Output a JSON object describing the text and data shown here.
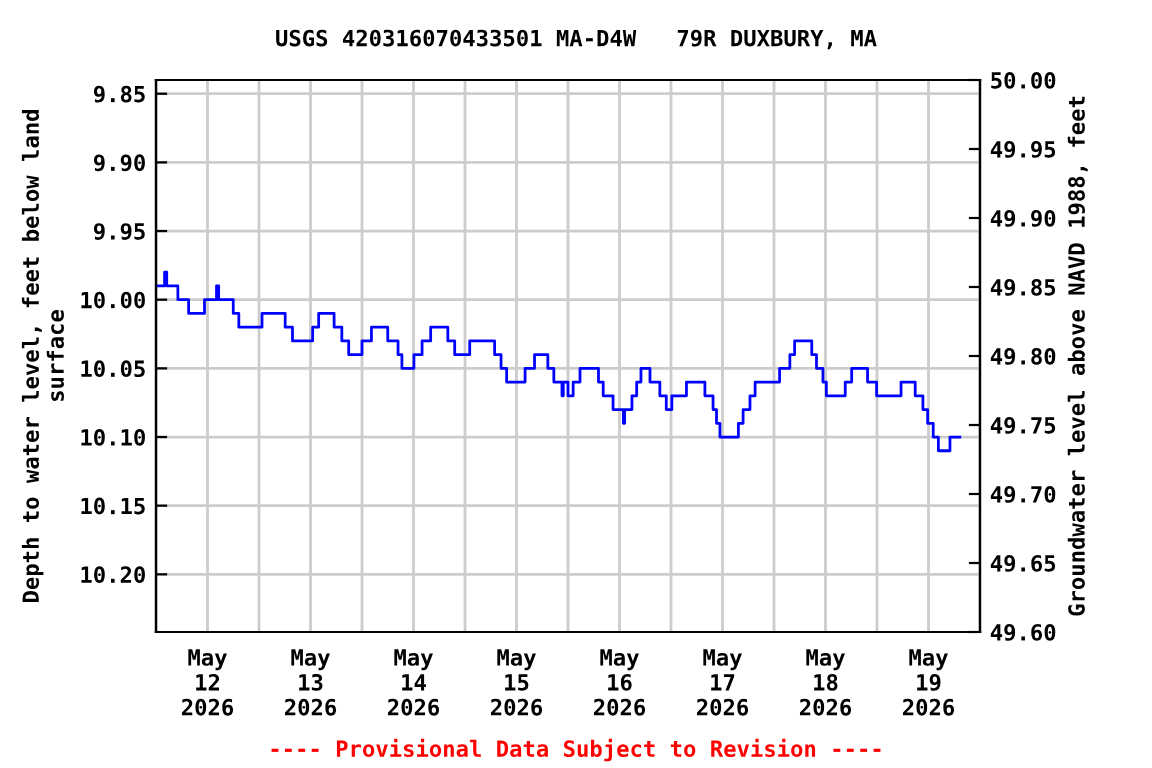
{
  "chart_data": {
    "type": "step",
    "title": "USGS 420316070433501 MA-D4W   79R DUXBURY, MA",
    "ylabel": "Depth to water level, feet below land\nsurface",
    "y2label": "Groundwater level above NAVD 1988, feet",
    "annotations": [
      "---- Provisional Data Subject to Revision ----"
    ],
    "series": [
      {
        "color": "#0000ff",
        "x": [
          "2026-05-12T00:10",
          "2026-05-12T02:00",
          "2026-05-12T02:30",
          "2026-05-12T05:06",
          "2026-05-12T07:36",
          "2026-05-12T11:18",
          "2026-05-12T14:06",
          "2026-05-12T14:36",
          "2026-05-12T18:00",
          "2026-05-12T19:18",
          "2026-05-13T00:42",
          "2026-05-13T06:06",
          "2026-05-13T07:48",
          "2026-05-13T12:30",
          "2026-05-13T13:54",
          "2026-05-13T17:30",
          "2026-05-13T19:18",
          "2026-05-13T20:54",
          "2026-05-14T00:00",
          "2026-05-14T02:12",
          "2026-05-14T06:00",
          "2026-05-14T08:24",
          "2026-05-14T09:18",
          "2026-05-14T12:06",
          "2026-05-14T14:00",
          "2026-05-14T16:00",
          "2026-05-14T20:00",
          "2026-05-14T21:36",
          "2026-05-15T01:06",
          "2026-05-15T06:54",
          "2026-05-15T08:24",
          "2026-05-15T09:42",
          "2026-05-15T14:00",
          "2026-05-15T16:12",
          "2026-05-15T19:18",
          "2026-05-15T20:42",
          "2026-05-15T22:36",
          "2026-05-15T22:54",
          "2026-05-16T00:00",
          "2026-05-16T01:12",
          "2026-05-16T02:48",
          "2026-05-16T07:06",
          "2026-05-16T08:12",
          "2026-05-16T10:30",
          "2026-05-16T12:54",
          "2026-05-16T13:12",
          "2026-05-16T14:54",
          "2026-05-16T16:00",
          "2026-05-16T17:00",
          "2026-05-16T19:06",
          "2026-05-16T21:24",
          "2026-05-16T22:54",
          "2026-05-17T00:12",
          "2026-05-17T03:36",
          "2026-05-17T07:54",
          "2026-05-17T09:48",
          "2026-05-17T10:36",
          "2026-05-17T11:24",
          "2026-05-17T15:42",
          "2026-05-17T16:48",
          "2026-05-17T18:24",
          "2026-05-17T19:36",
          "2026-05-18T01:18",
          "2026-05-18T03:42",
          "2026-05-18T04:48",
          "2026-05-18T08:48",
          "2026-05-18T09:54",
          "2026-05-18T11:24",
          "2026-05-18T12:12",
          "2026-05-18T16:36",
          "2026-05-18T18:06",
          "2026-05-18T21:48",
          "2026-05-18T23:54",
          "2026-05-19T05:36",
          "2026-05-19T08:54",
          "2026-05-19T10:42",
          "2026-05-19T11:48",
          "2026-05-19T13:06",
          "2026-05-19T14:18",
          "2026-05-19T17:00",
          "2026-05-19T19:18"
        ],
        "values": [
          9.99,
          9.98,
          9.99,
          10.0,
          10.01,
          10.0,
          9.99,
          10.0,
          10.01,
          10.02,
          10.01,
          10.02,
          10.03,
          10.02,
          10.01,
          10.02,
          10.03,
          10.04,
          10.03,
          10.02,
          10.03,
          10.04,
          10.05,
          10.04,
          10.03,
          10.02,
          10.03,
          10.04,
          10.03,
          10.04,
          10.05,
          10.06,
          10.05,
          10.04,
          10.05,
          10.06,
          10.07,
          10.06,
          10.07,
          10.06,
          10.05,
          10.06,
          10.07,
          10.08,
          10.09,
          10.08,
          10.07,
          10.06,
          10.05,
          10.06,
          10.07,
          10.08,
          10.07,
          10.06,
          10.07,
          10.08,
          10.09,
          10.1,
          10.09,
          10.08,
          10.07,
          10.06,
          10.05,
          10.04,
          10.03,
          10.04,
          10.05,
          10.06,
          10.07,
          10.06,
          10.05,
          10.06,
          10.07,
          10.06,
          10.07,
          10.08,
          10.09,
          10.1,
          10.11,
          10.1,
          10.1
        ]
      }
    ],
    "xlim": [
      "2026-05-12",
      "2026-05-20"
    ],
    "xticks": [
      {
        "value": "2026-05-12",
        "label": null
      },
      {
        "value": "2026-05-12T12:00",
        "label": "May\n12\n2026"
      },
      {
        "value": "2026-05-13",
        "label": null
      },
      {
        "value": "2026-05-13T12:00",
        "label": "May\n13\n2026"
      },
      {
        "value": "2026-05-14",
        "label": null
      },
      {
        "value": "2026-05-14T12:00",
        "label": "May\n14\n2026"
      },
      {
        "value": "2026-05-15",
        "label": null
      },
      {
        "value": "2026-05-15T12:00",
        "label": "May\n15\n2026"
      },
      {
        "value": "2026-05-16",
        "label": null
      },
      {
        "value": "2026-05-16T12:00",
        "label": "May\n16\n2026"
      },
      {
        "value": "2026-05-17",
        "label": null
      },
      {
        "value": "2026-05-17T12:00",
        "label": "May\n17\n2026"
      },
      {
        "value": "2026-05-18",
        "label": null
      },
      {
        "value": "2026-05-18T12:00",
        "label": "May\n18\n2026"
      },
      {
        "value": "2026-05-19",
        "label": null
      },
      {
        "value": "2026-05-19T12:00",
        "label": "May\n19\n2026"
      },
      {
        "value": "2026-05-20",
        "label": null
      }
    ],
    "ylim": [
      10.242,
      9.84
    ],
    "yticks": [
      {
        "value": 9.85,
        "label": "9.85"
      },
      {
        "value": 9.9,
        "label": "9.90"
      },
      {
        "value": 9.95,
        "label": "9.95"
      },
      {
        "value": 10.0,
        "label": "10.00"
      },
      {
        "value": 10.05,
        "label": "10.05"
      },
      {
        "value": 10.1,
        "label": "10.10"
      },
      {
        "value": 10.15,
        "label": "10.15"
      },
      {
        "value": 10.2,
        "label": "10.20"
      }
    ],
    "y2lim": [
      49.6,
      50.0
    ],
    "y2ticks": [
      {
        "value": 49.6,
        "label": "49.60"
      },
      {
        "value": 49.65,
        "label": "49.65"
      },
      {
        "value": 49.7,
        "label": "49.70"
      },
      {
        "value": 49.75,
        "label": "49.75"
      },
      {
        "value": 49.8,
        "label": "49.80"
      },
      {
        "value": 49.85,
        "label": "49.85"
      },
      {
        "value": 49.9,
        "label": "49.90"
      },
      {
        "value": 49.95,
        "label": "49.95"
      },
      {
        "value": 50.0,
        "label": "50.00"
      }
    ],
    "grid": true,
    "line_style": "solid",
    "marker": "none"
  }
}
